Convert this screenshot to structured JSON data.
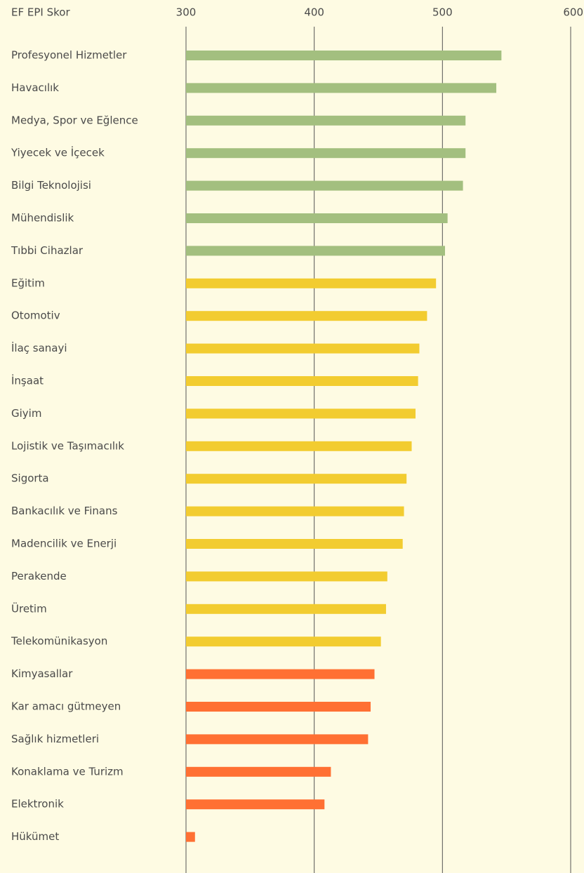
{
  "chart_data": {
    "type": "bar",
    "orientation": "horizontal",
    "axis_label": "EF EPI Skor",
    "categories": [
      "Profesyonel Hizmetler",
      "Havacılık",
      "Medya, Spor ve Eğlence",
      "Yiyecek ve İçecek",
      "Bilgi Teknolojisi",
      "Mühendislik",
      "Tıbbi Cihazlar",
      "Eğitim",
      "Otomotiv",
      "İlaç sanayi",
      "İnşaat",
      "Giyim",
      "Lojistik ve Taşımacılık",
      "Sigorta",
      "Bankacılık ve Finans",
      "Madencilik ve Enerji",
      "Perakende",
      "Üretim",
      "Telekomünikasyon",
      "Kimyasallar",
      "Kar amacı gütmeyen",
      "Sağlık hizmetleri",
      "Konaklama ve Turizm",
      "Elektronik",
      "Hükümet"
    ],
    "values": [
      546,
      542,
      518,
      518,
      516,
      504,
      502,
      495,
      488,
      482,
      481,
      479,
      476,
      472,
      470,
      469,
      457,
      456,
      452,
      447,
      444,
      442,
      413,
      408,
      307
    ],
    "colors": [
      "#a3bf7f",
      "#a3bf7f",
      "#a3bf7f",
      "#a3bf7f",
      "#a3bf7f",
      "#a3bf7f",
      "#a3bf7f",
      "#f2cc30",
      "#f2cc30",
      "#f2cc30",
      "#f2cc30",
      "#f2cc30",
      "#f2cc30",
      "#f2cc30",
      "#f2cc30",
      "#f2cc30",
      "#f2cc30",
      "#f2cc30",
      "#f2cc30",
      "#ff7033",
      "#ff7033",
      "#ff7033",
      "#ff7033",
      "#ff7033",
      "#ff7033"
    ],
    "xlim": [
      300,
      600
    ],
    "xticks": [
      300,
      400,
      500,
      600
    ],
    "grid": true
  }
}
